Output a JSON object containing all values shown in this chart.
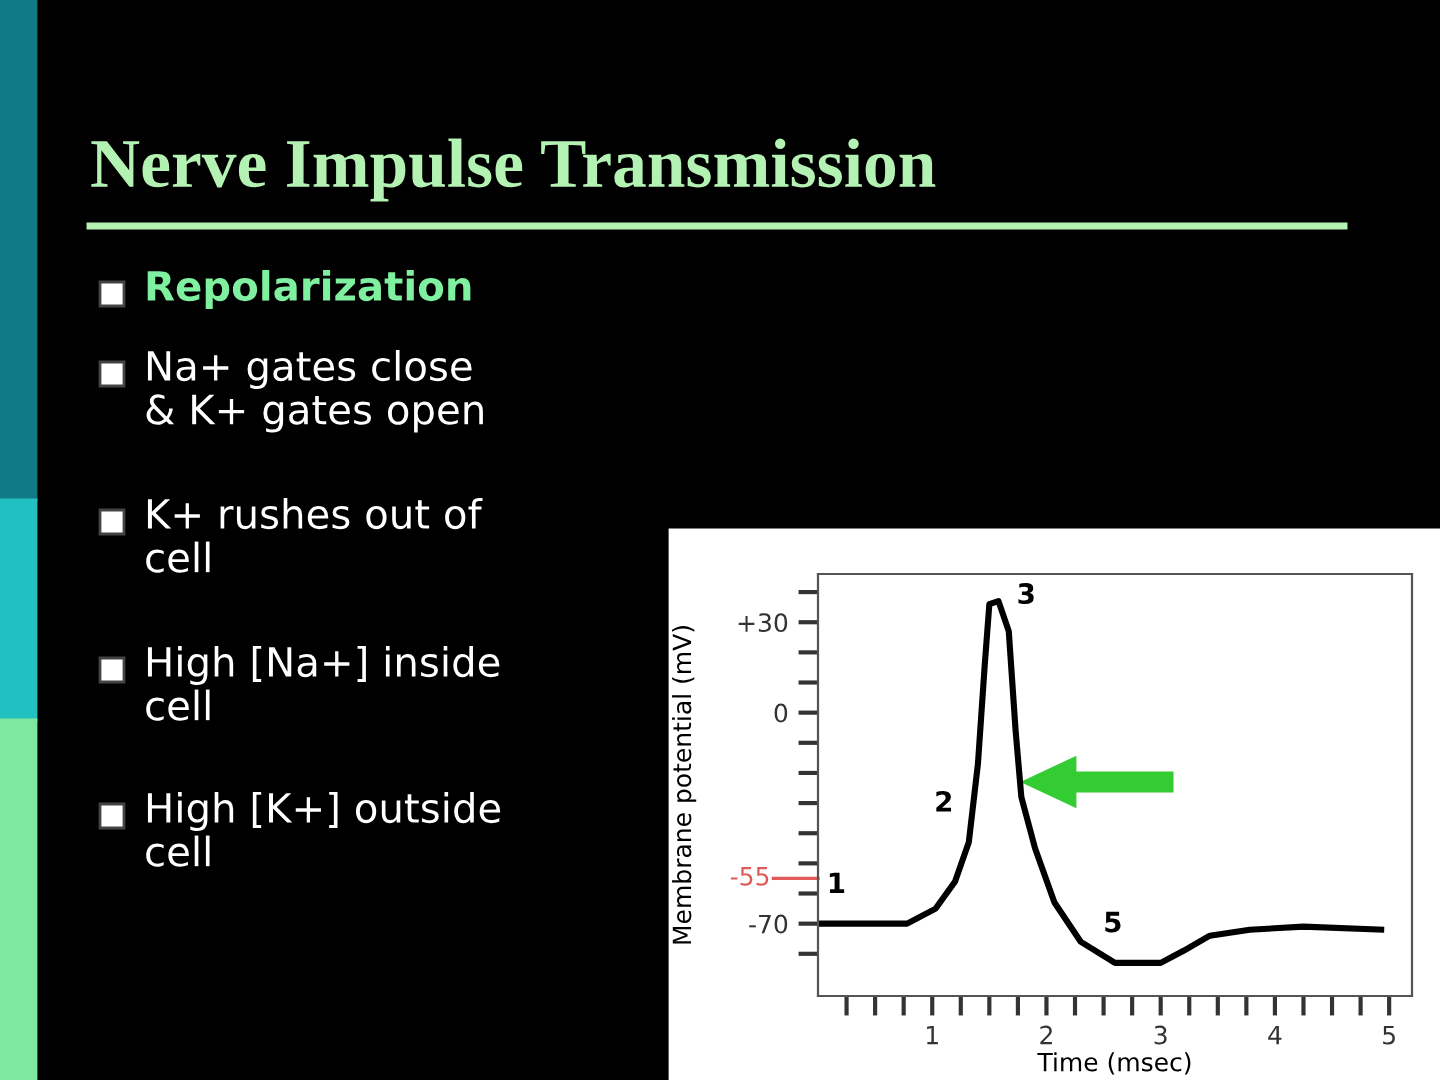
{
  "chart_data": {
    "type": "line",
    "title": "Nerve Impulse Transmission",
    "annotations": [
      "Repolarization",
      "Na+ gates close\n& K+ gates open",
      "K+ rushes out of\ncell",
      "High [Na+] inside\ncell",
      "High [K+] outside\ncell",
      {
        "text": "1",
        "x": 0.38,
        "y": -70
      },
      {
        "text": "2",
        "x": 1.32,
        "y": -43
      },
      {
        "text": "3",
        "x": 1.58,
        "y": 37
      },
      {
        "text": "5",
        "x": 2.8,
        "y": -83
      }
    ],
    "xlabel": "Time (msec)",
    "ylabel": "Membrane potential (mV)",
    "series": [
      {
        "color": "#000000",
        "x": [
          0,
          0.78,
          1.03,
          1.2,
          1.32,
          1.4,
          1.46,
          1.5,
          1.58,
          1.67,
          1.73,
          1.78,
          1.9,
          2.07,
          2.3,
          2.6,
          3.0,
          3.2,
          3.43,
          3.78,
          4.25,
          4.93
        ],
        "values": [
          -70,
          -70,
          -65,
          -56,
          -43,
          -17,
          16,
          36,
          37,
          27,
          -6,
          -28,
          -45,
          -63,
          -76,
          -83,
          -83,
          -79,
          -74,
          -72,
          -71,
          -72
        ]
      }
    ],
    "xlim": [
      0,
      5.2
    ],
    "ylim": [
      -94,
      46
    ],
    "xticks": [
      {
        "value": 0.25,
        "label": null
      },
      {
        "value": 0.5,
        "label": null
      },
      {
        "value": 0.75,
        "label": null
      },
      1,
      {
        "value": 1.25,
        "label": null
      },
      {
        "value": 1.5,
        "label": null
      },
      {
        "value": 1.75,
        "label": null
      },
      2,
      {
        "value": 2.25,
        "label": null
      },
      {
        "value": 2.5,
        "label": null
      },
      {
        "value": 2.75,
        "label": null
      },
      3,
      {
        "value": 3.25,
        "label": null
      },
      {
        "value": 3.5,
        "label": null
      },
      {
        "value": 3.75,
        "label": null
      },
      4,
      {
        "value": 4.25,
        "label": null
      },
      {
        "value": 4.5,
        "label": null
      },
      {
        "value": 4.75,
        "label": null
      },
      5
    ],
    "yticks": [
      {
        "value": 40,
        "label": null
      },
      {
        "value": 30,
        "label": "+30"
      },
      {
        "value": 20,
        "label": null
      },
      {
        "value": 10,
        "label": null
      },
      0,
      {
        "value": -10,
        "label": null
      },
      {
        "value": -20,
        "label": null
      },
      {
        "value": -30,
        "label": null
      },
      {
        "value": -40,
        "label": null
      },
      {
        "value": -50,
        "label": null
      },
      {
        "value": -60,
        "label": null
      },
      -70,
      {
        "value": -80,
        "label": null
      }
    ],
    "ref_lines": [
      {
        "axis": "y",
        "value": -55,
        "label": "-55",
        "color": "#e05a5a"
      }
    ],
    "grid": false,
    "legend": false,
    "marker": "none",
    "line_style": "solid"
  }
}
